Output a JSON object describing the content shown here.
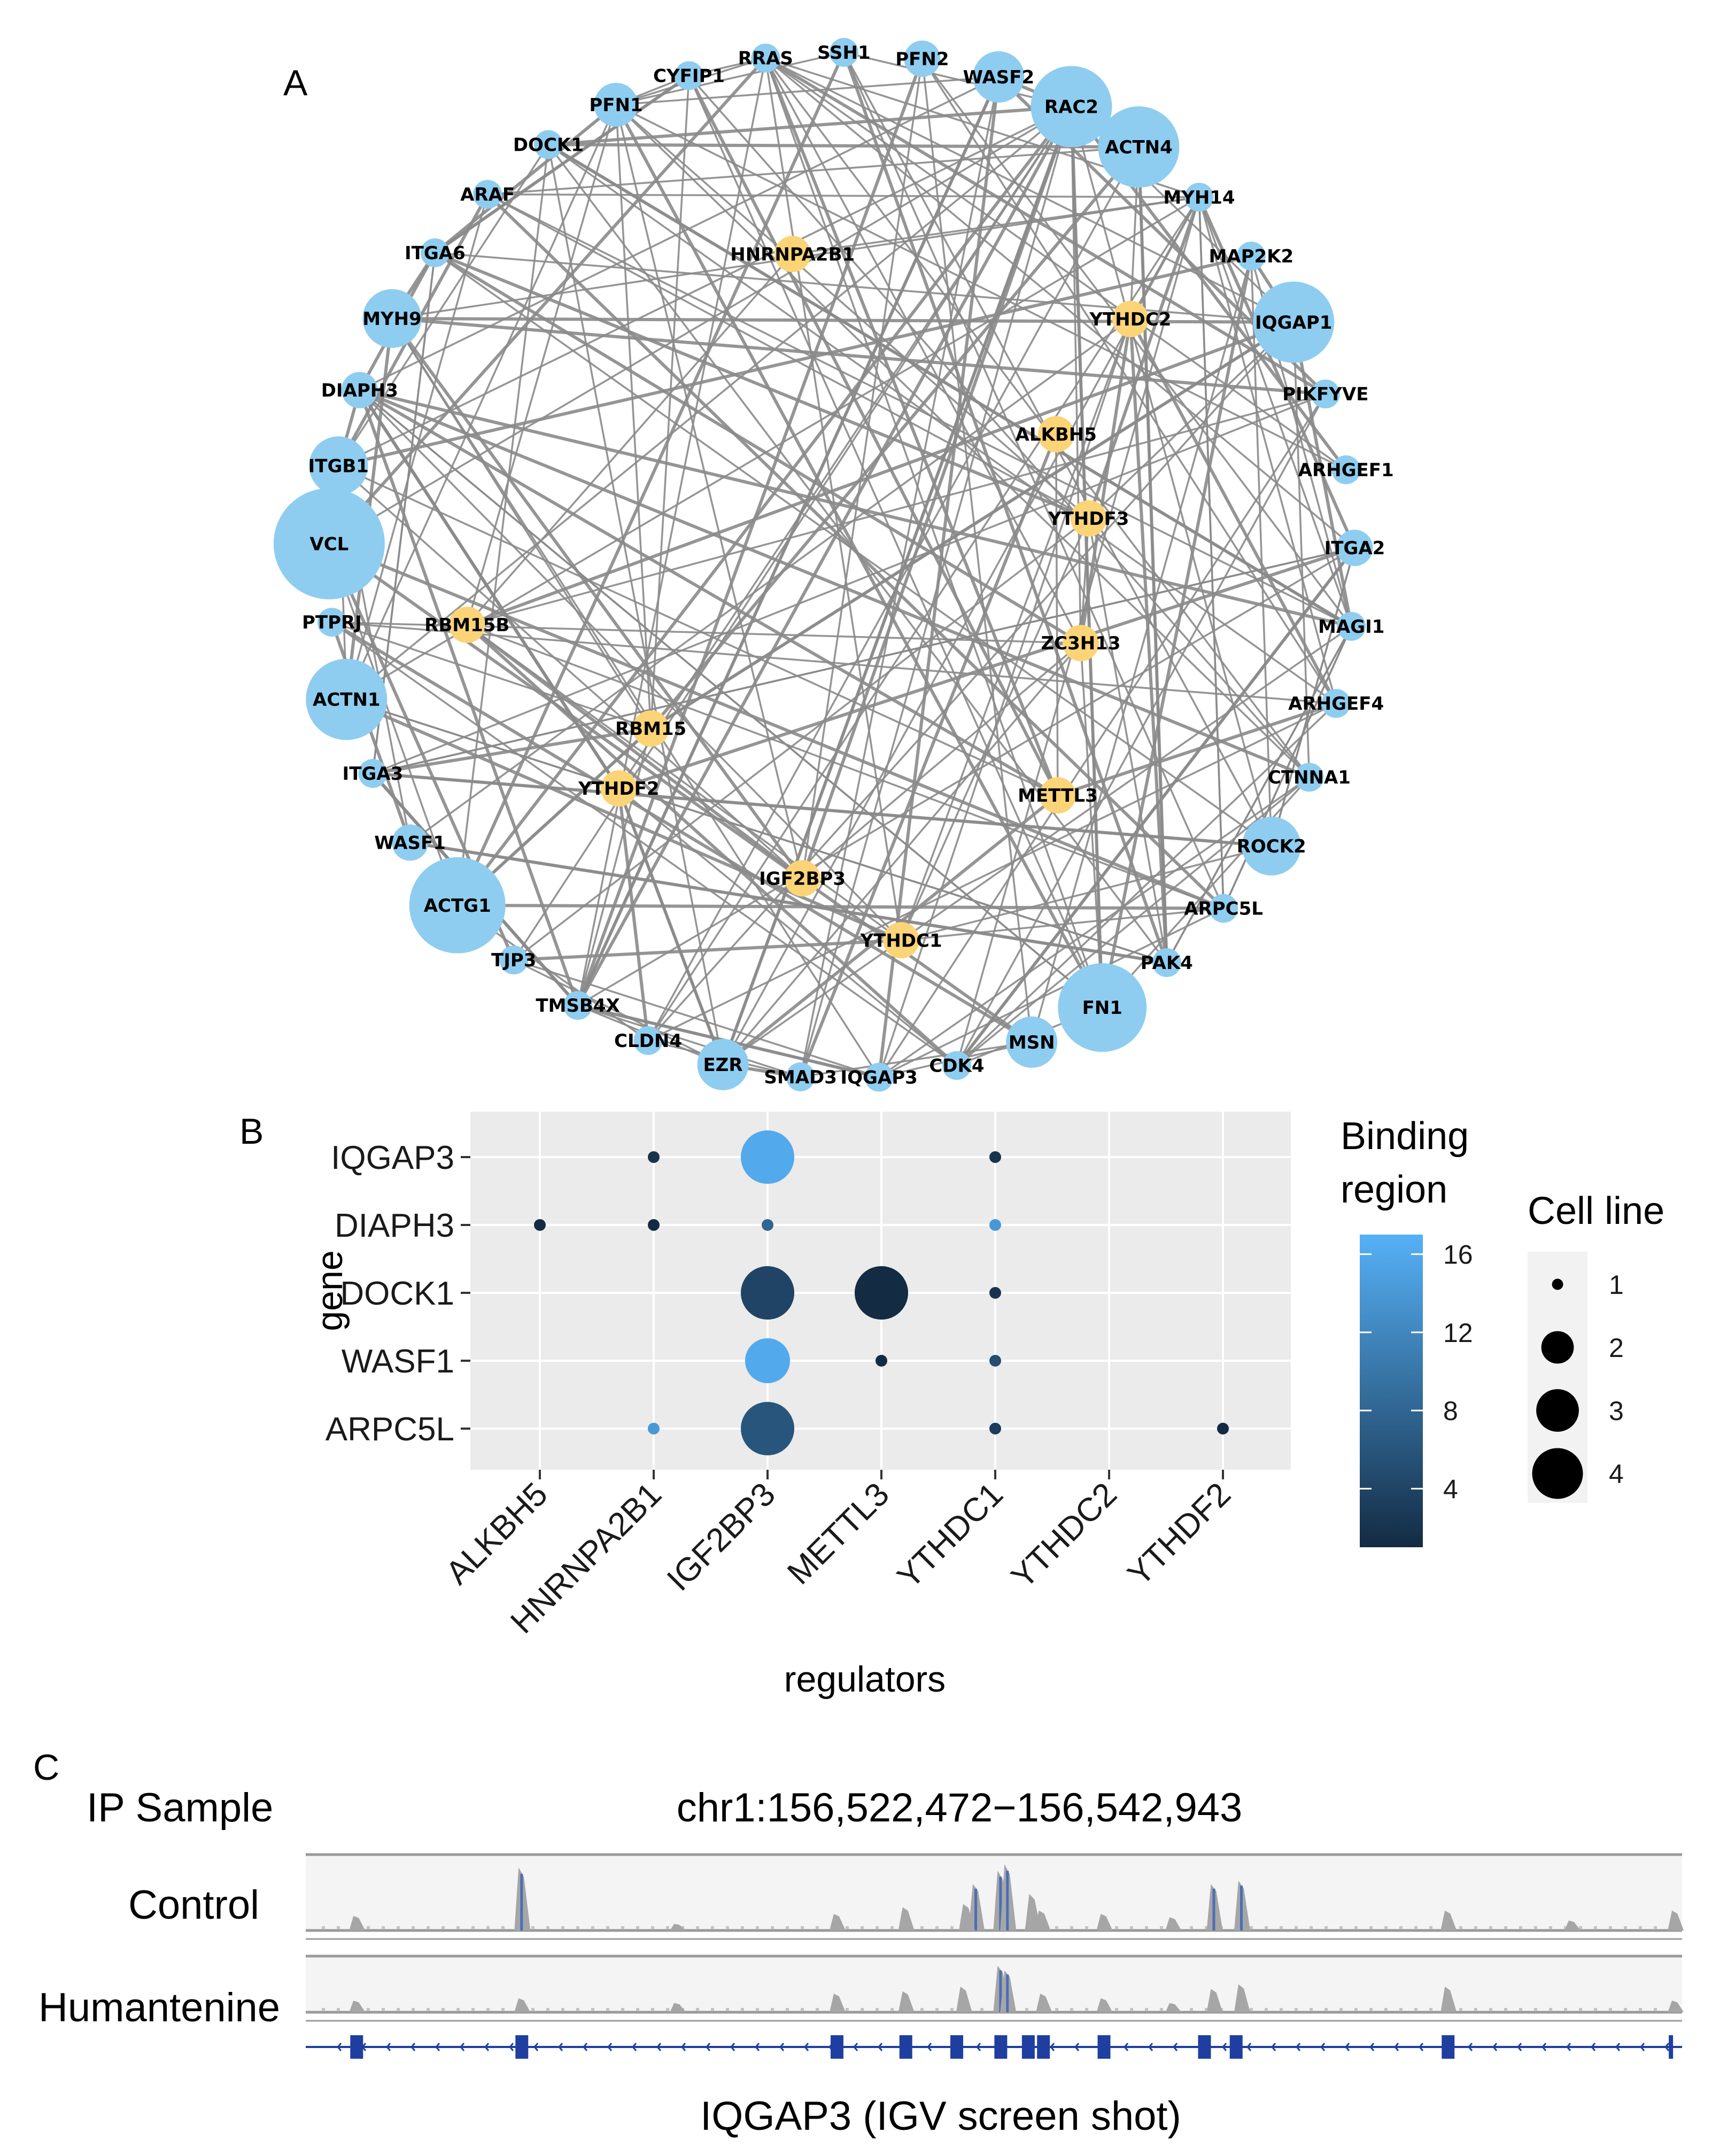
{
  "panels": {
    "a": "A",
    "b": "B",
    "c": "C"
  },
  "network": {
    "edge_color": "#8a8a8a",
    "node_color_target": "#8ecdf0",
    "node_color_regulator": "#fcd478",
    "target_nodes": [
      {
        "name": "RRAS",
        "degree": 1
      },
      {
        "name": "SSH1",
        "degree": 1
      },
      {
        "name": "PFN2",
        "degree": 2
      },
      {
        "name": "WASF2",
        "degree": 4
      },
      {
        "name": "RAC2",
        "degree": 8
      },
      {
        "name": "ACTN4",
        "degree": 8
      },
      {
        "name": "MYH14",
        "degree": 1
      },
      {
        "name": "MAP2K2",
        "degree": 1
      },
      {
        "name": "IQGAP1",
        "degree": 8
      },
      {
        "name": "PIKFYVE",
        "degree": 1
      },
      {
        "name": "ARHGEF1",
        "degree": 1
      },
      {
        "name": "ITGA2",
        "degree": 2
      },
      {
        "name": "MAGI1",
        "degree": 1
      },
      {
        "name": "ARHGEF4",
        "degree": 1
      },
      {
        "name": "CTNNA1",
        "degree": 1
      },
      {
        "name": "ROCK2",
        "degree": 5
      },
      {
        "name": "ARPC5L",
        "degree": 1
      },
      {
        "name": "PAK4",
        "degree": 1
      },
      {
        "name": "FN1",
        "degree": 9
      },
      {
        "name": "MSN",
        "degree": 4
      },
      {
        "name": "CDK4",
        "degree": 1
      },
      {
        "name": "IQGAP3",
        "degree": 1
      },
      {
        "name": "SMAD3",
        "degree": 1
      },
      {
        "name": "EZR",
        "degree": 4
      },
      {
        "name": "CLDN4",
        "degree": 1
      },
      {
        "name": "TMSB4X",
        "degree": 1
      },
      {
        "name": "TJP3",
        "degree": 1
      },
      {
        "name": "ACTG1",
        "degree": 10
      },
      {
        "name": "WASF1",
        "degree": 2
      },
      {
        "name": "ITGA3",
        "degree": 1
      },
      {
        "name": "ACTN1",
        "degree": 8
      },
      {
        "name": "PTPRJ",
        "degree": 1
      },
      {
        "name": "VCL",
        "degree": 12
      },
      {
        "name": "ITGB1",
        "degree": 5
      },
      {
        "name": "DIAPH3",
        "degree": 2
      },
      {
        "name": "MYH9",
        "degree": 5
      },
      {
        "name": "ITGA6",
        "degree": 1
      },
      {
        "name": "ARAF",
        "degree": 1
      },
      {
        "name": "DOCK1",
        "degree": 1
      },
      {
        "name": "PFN1",
        "degree": 3
      },
      {
        "name": "CYFIP1",
        "degree": 1
      }
    ],
    "regulator_nodes": [
      {
        "name": "YTHDF3"
      },
      {
        "name": "HNRNPA2B1"
      },
      {
        "name": "RBM15B"
      },
      {
        "name": "ALKBH5"
      },
      {
        "name": "YTHDF2"
      },
      {
        "name": "YTHDC2"
      },
      {
        "name": "RBM15"
      },
      {
        "name": "IGF2BP3"
      },
      {
        "name": "YTHDC1"
      },
      {
        "name": "ZC3H13"
      },
      {
        "name": "METTL3"
      }
    ]
  },
  "chart_data": {
    "type": "scatter",
    "subtype": "dot-plot",
    "x_categories": [
      "ALKBH5",
      "HNRNPA2B1",
      "IGF2BP3",
      "METTL3",
      "YTHDC1",
      "YTHDC2",
      "YTHDF2"
    ],
    "y_categories": [
      "IQGAP3",
      "DIAPH3",
      "DOCK1",
      "WASF1",
      "ARPC5L"
    ],
    "xlabel": "regulators",
    "ylabel": "gene",
    "points": [
      {
        "gene": "IQGAP3",
        "regulator": "HNRNPA2B1",
        "binding_region": 2,
        "cell_line": 1
      },
      {
        "gene": "IQGAP3",
        "regulator": "IGF2BP3",
        "binding_region": 16,
        "cell_line": 4
      },
      {
        "gene": "IQGAP3",
        "regulator": "YTHDC1",
        "binding_region": 2,
        "cell_line": 1
      },
      {
        "gene": "DIAPH3",
        "regulator": "ALKBH5",
        "binding_region": 1,
        "cell_line": 1
      },
      {
        "gene": "DIAPH3",
        "regulator": "HNRNPA2B1",
        "binding_region": 1,
        "cell_line": 1
      },
      {
        "gene": "DIAPH3",
        "regulator": "IGF2BP3",
        "binding_region": 8,
        "cell_line": 1
      },
      {
        "gene": "DIAPH3",
        "regulator": "YTHDC1",
        "binding_region": 14,
        "cell_line": 1
      },
      {
        "gene": "DOCK1",
        "regulator": "IGF2BP3",
        "binding_region": 4,
        "cell_line": 4
      },
      {
        "gene": "DOCK1",
        "regulator": "METTL3",
        "binding_region": 1,
        "cell_line": 4
      },
      {
        "gene": "DOCK1",
        "regulator": "YTHDC1",
        "binding_region": 2,
        "cell_line": 1
      },
      {
        "gene": "WASF1",
        "regulator": "IGF2BP3",
        "binding_region": 16,
        "cell_line": 3
      },
      {
        "gene": "WASF1",
        "regulator": "METTL3",
        "binding_region": 1,
        "cell_line": 1
      },
      {
        "gene": "WASF1",
        "regulator": "YTHDC1",
        "binding_region": 5,
        "cell_line": 1
      },
      {
        "gene": "ARPC5L",
        "regulator": "HNRNPA2B1",
        "binding_region": 14,
        "cell_line": 1
      },
      {
        "gene": "ARPC5L",
        "regulator": "IGF2BP3",
        "binding_region": 6,
        "cell_line": 4
      },
      {
        "gene": "ARPC5L",
        "regulator": "YTHDC1",
        "binding_region": 3,
        "cell_line": 1
      },
      {
        "gene": "ARPC5L",
        "regulator": "YTHDF2",
        "binding_region": 1,
        "cell_line": 1
      }
    ],
    "color_legend": {
      "title_line1": "Binding",
      "title_line2": "region",
      "ticks": [
        "4",
        "8",
        "12",
        "16"
      ],
      "range": [
        1,
        17
      ],
      "low_color": "#132b43",
      "high_color": "#56b1f7"
    },
    "size_legend": {
      "title": "Cell line",
      "values": [
        "1",
        "2",
        "3",
        "4"
      ]
    }
  },
  "igv": {
    "region": "chr1:156,522,472−156,542,943",
    "sample_header": "IP Sample",
    "tracks": [
      "Control",
      "Humantenine"
    ],
    "gene_caption": "IQGAP3 (IGV screen shot)",
    "control_peaks": [
      [
        0.037,
        0.22
      ],
      [
        0.157,
        0.95
      ],
      [
        0.27,
        0.1
      ],
      [
        0.386,
        0.25
      ],
      [
        0.436,
        0.35
      ],
      [
        0.487,
        0.7
      ],
      [
        0.48,
        0.4
      ],
      [
        0.505,
        0.9
      ],
      [
        0.51,
        1.0
      ],
      [
        0.528,
        0.55
      ],
      [
        0.535,
        0.3
      ],
      [
        0.58,
        0.25
      ],
      [
        0.63,
        0.2
      ],
      [
        0.66,
        0.7
      ],
      [
        0.68,
        0.75
      ],
      [
        0.83,
        0.3
      ],
      [
        0.92,
        0.15
      ],
      [
        0.995,
        0.3
      ]
    ],
    "humantenine_peaks": [
      [
        0.037,
        0.25
      ],
      [
        0.157,
        0.3
      ],
      [
        0.27,
        0.2
      ],
      [
        0.386,
        0.4
      ],
      [
        0.436,
        0.45
      ],
      [
        0.478,
        0.55
      ],
      [
        0.505,
        1.0
      ],
      [
        0.51,
        0.9
      ],
      [
        0.536,
        0.4
      ],
      [
        0.58,
        0.3
      ],
      [
        0.63,
        0.2
      ],
      [
        0.66,
        0.5
      ],
      [
        0.68,
        0.6
      ],
      [
        0.83,
        0.55
      ],
      [
        0.995,
        0.25
      ]
    ],
    "exons": [
      0.037,
      0.157,
      0.386,
      0.436,
      0.473,
      0.505,
      0.525,
      0.536,
      0.58,
      0.653,
      0.676,
      0.83,
      0.995
    ]
  }
}
